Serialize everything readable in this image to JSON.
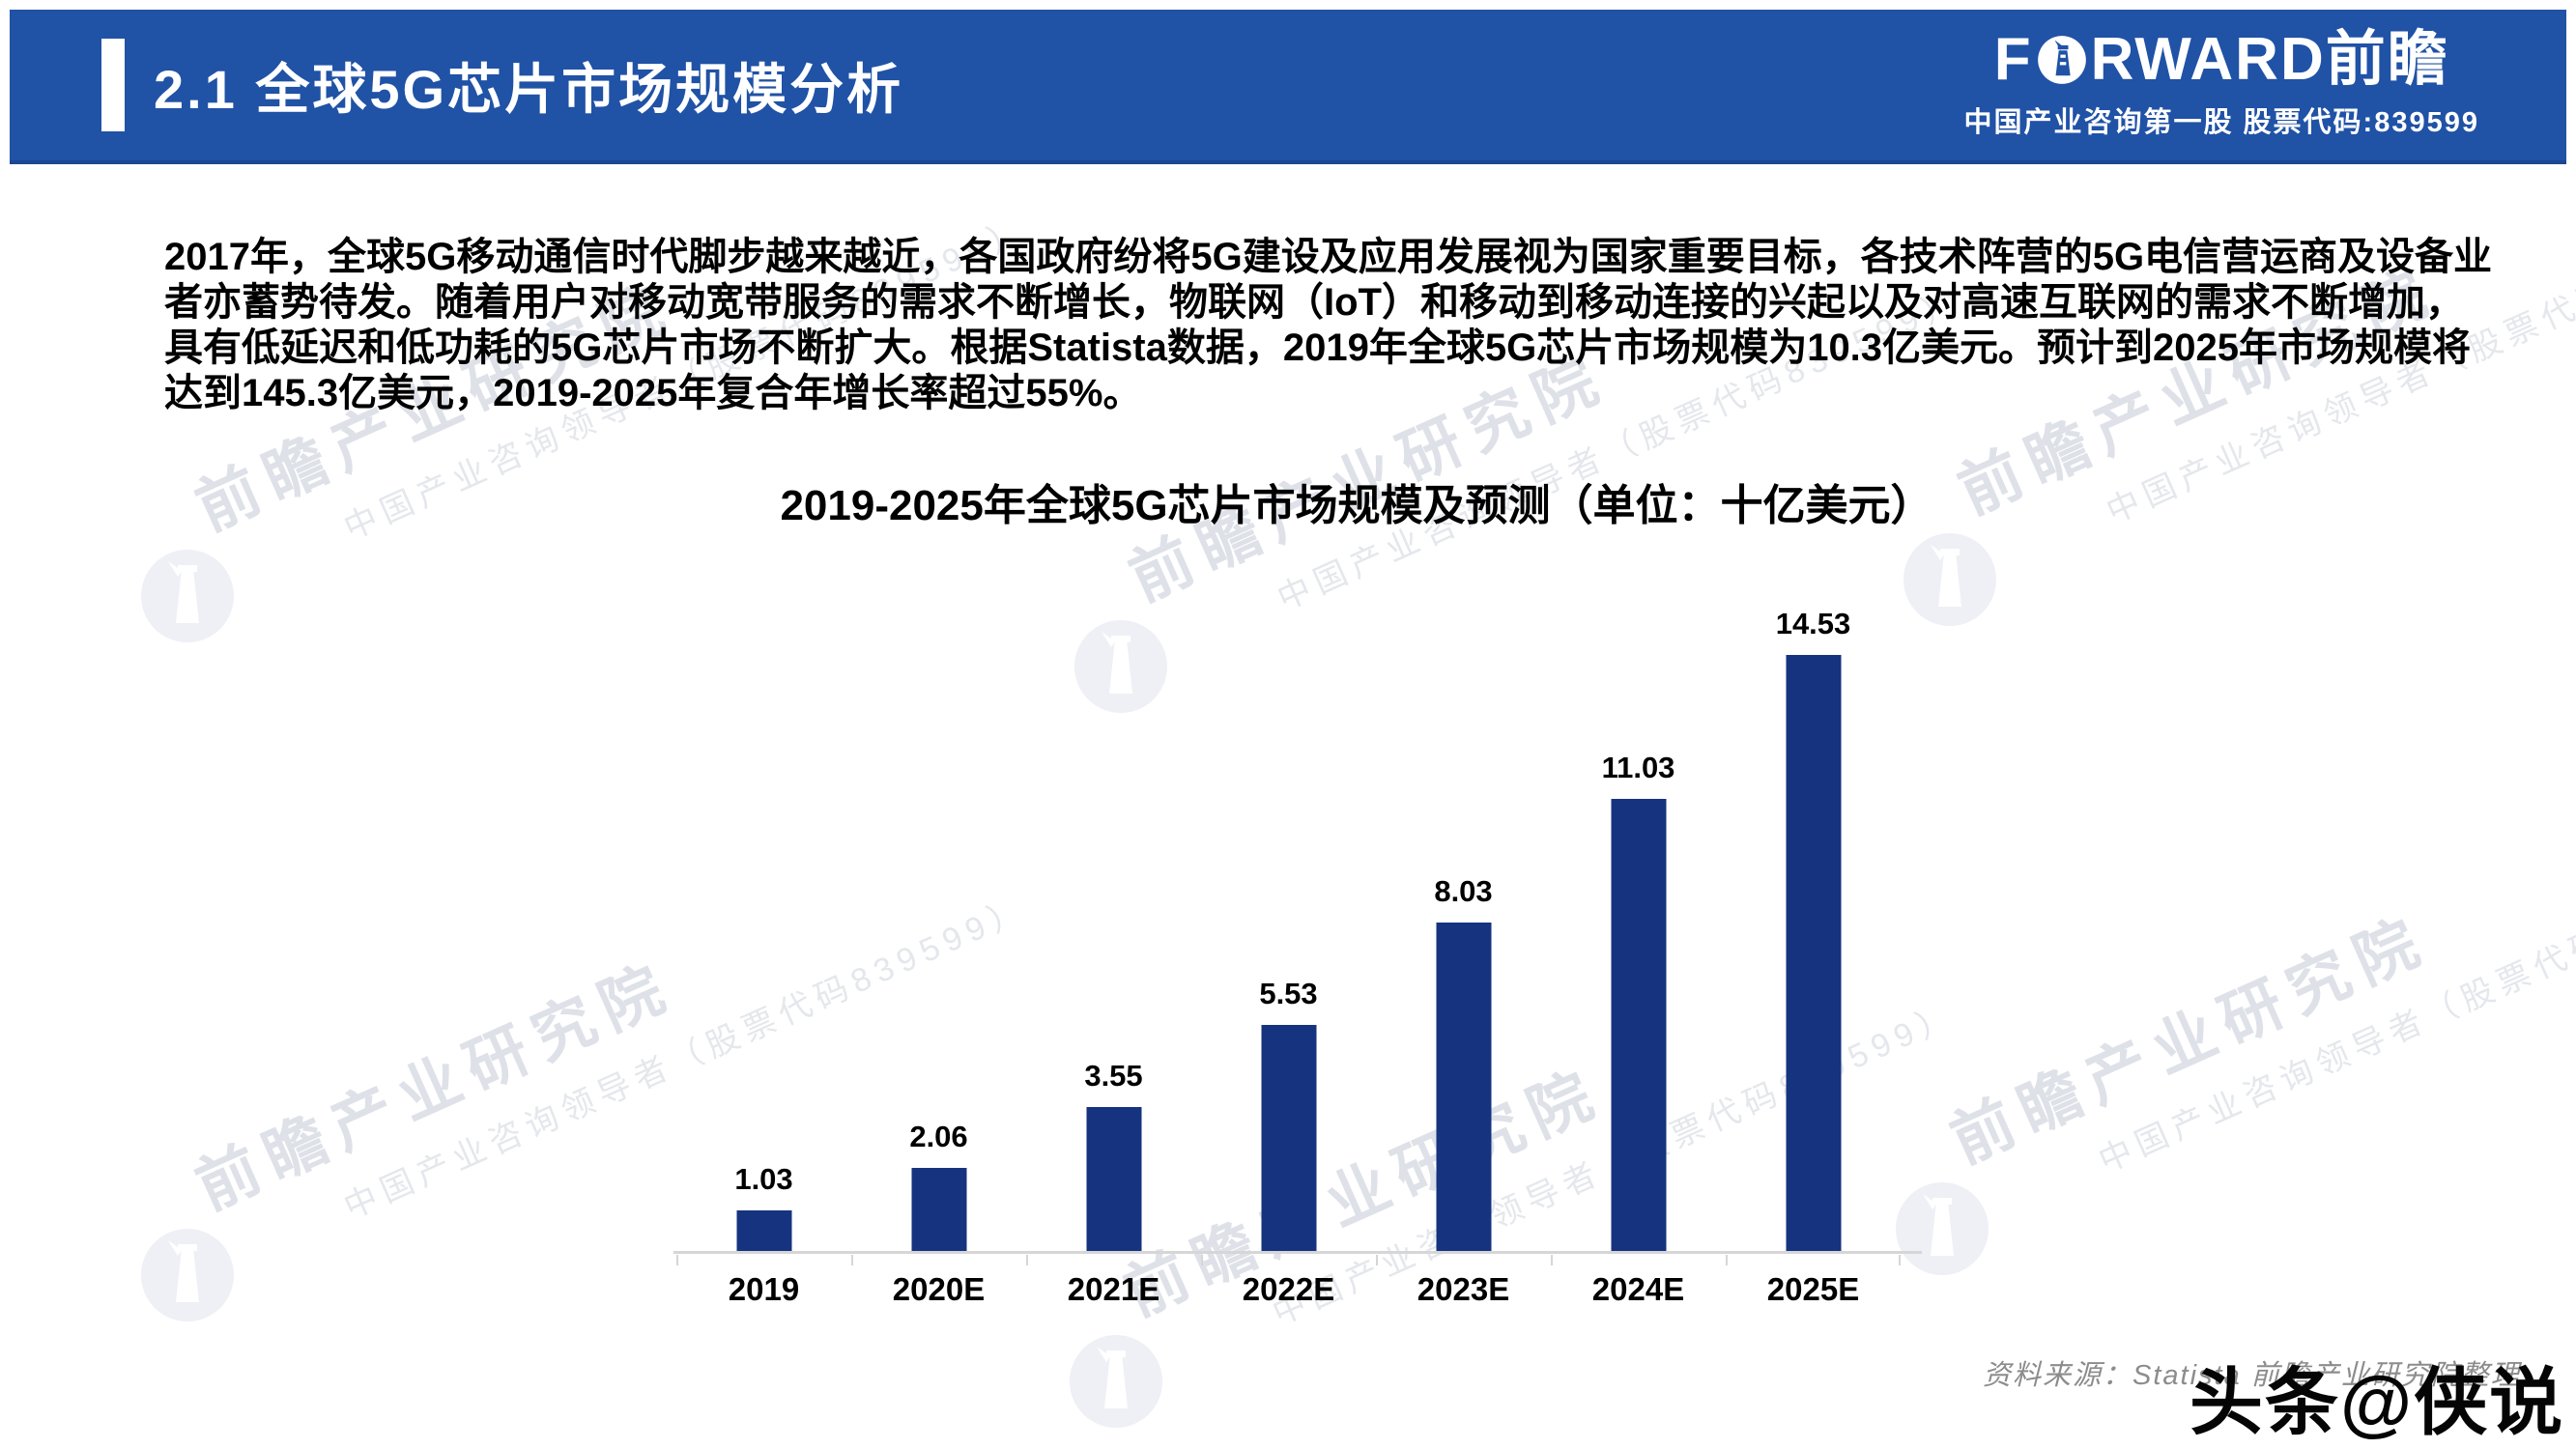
{
  "header": {
    "section_title": "2.1 全球5G芯片市场规模分析",
    "background_color": "#2052A6",
    "brand": {
      "logo_prefix": "F",
      "logo_suffix": "RWARD前瞻",
      "lighthouse_icon": "lighthouse-in-circle",
      "tagline": "中国产业咨询第一股 股票代码:839599"
    }
  },
  "body": {
    "lines": [
      "2017年，全球5G移动通信时代脚步越来越近，各国政府纷将5G建设及应用发展视为国家重要目标，各技术阵营的5G电信营运商及设备业",
      "者亦蓄势待发。随着用户对移动宽带服务的需求不断增长，物联网（IoT）和移动到移动连接的兴起以及对高速互联网的需求不断增加，",
      "具有低延迟和低功耗的5G芯片市场不断扩大。根据Statista数据，2019年全球5G芯片市场规模为10.3亿美元。预计到2025年市场规模将",
      "达到145.3亿美元，2019-2025年复合年增长率超过55%。"
    ]
  },
  "chart_data": {
    "type": "bar",
    "title": "2019-2025年全球5G芯片市场规模及预测（单位：十亿美元）",
    "categories": [
      "2019",
      "2020E",
      "2021E",
      "2022E",
      "2023E",
      "2024E",
      "2025E"
    ],
    "values": [
      1.03,
      2.06,
      3.55,
      5.53,
      8.03,
      11.03,
      14.53
    ],
    "unit": "十亿美元",
    "bar_color": "#16337F",
    "axis_color": "#D6D6D6",
    "ylim": [
      0,
      15.5
    ],
    "grid": false,
    "legend": "none",
    "value_labels": true
  },
  "footer": {
    "source_note": "资料来源：Statista 前瞻产业研究院整理",
    "watermark_badge": "头条@侠说"
  },
  "watermark": {
    "title": "前瞻产业研究院",
    "subtitle": "中国产业咨询领导者（股票代码839599）"
  }
}
